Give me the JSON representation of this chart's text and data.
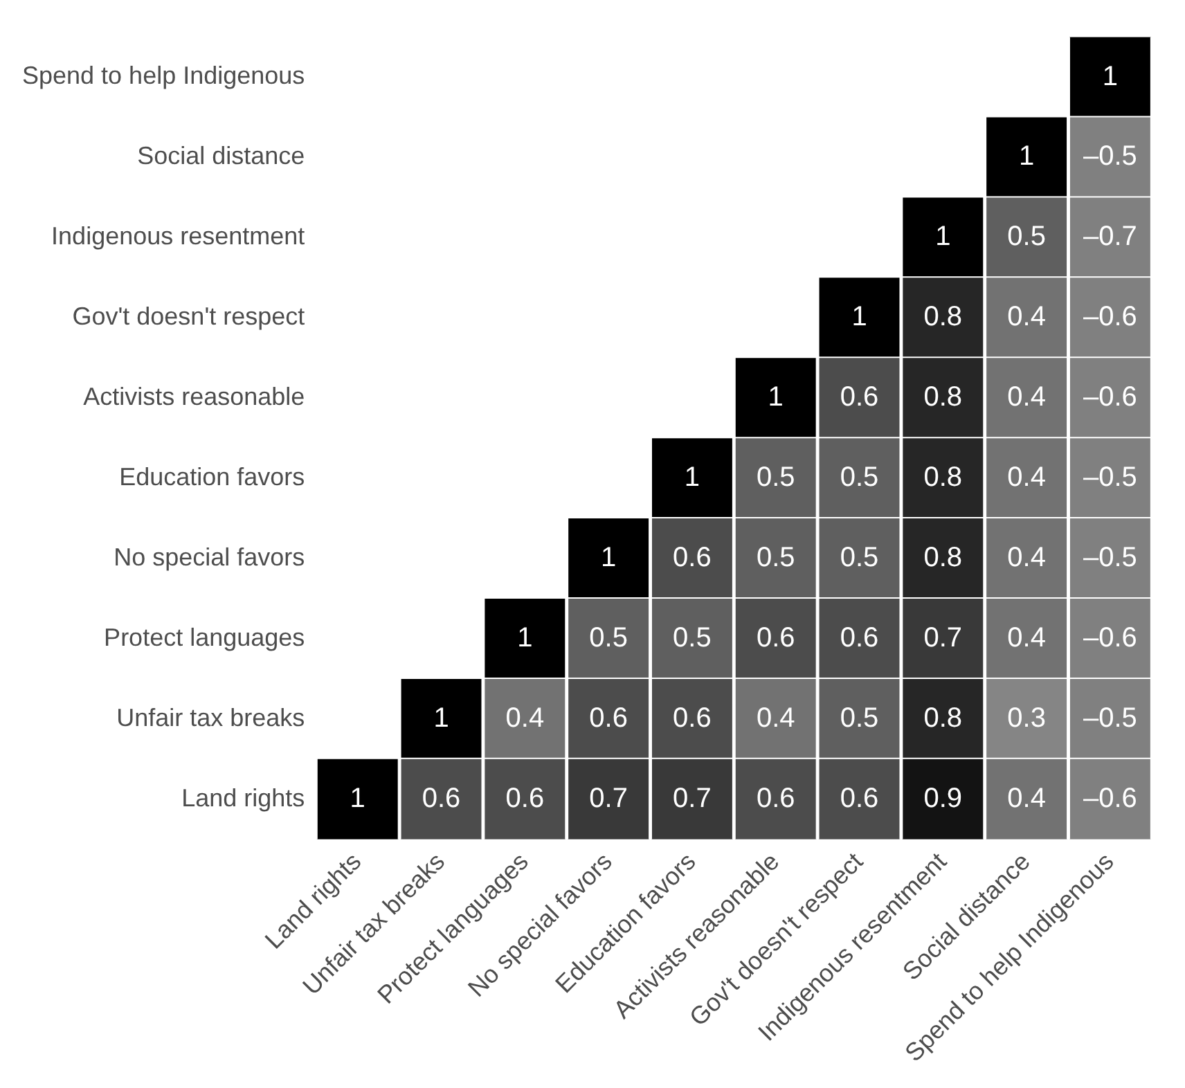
{
  "chart_data": {
    "type": "heatmap",
    "categories": [
      "Land rights",
      "Unfair tax breaks",
      "Protect languages",
      "No special favors",
      "Education favors",
      "Activists reasonable",
      "Gov't doesn't respect",
      "Indigenous resentment",
      "Social distance",
      "Spend to help Indigenous"
    ],
    "y_categories": [
      "Spend to help Indigenous",
      "Social distance",
      "Indigenous resentment",
      "Gov't doesn't respect",
      "Activists reasonable",
      "Education favors",
      "No special favors",
      "Protect languages",
      "Unfair tax breaks",
      "Land rights"
    ],
    "cells": [
      [
        null,
        null,
        null,
        null,
        null,
        null,
        null,
        null,
        null,
        1
      ],
      [
        null,
        null,
        null,
        null,
        null,
        null,
        null,
        null,
        1,
        -0.5
      ],
      [
        null,
        null,
        null,
        null,
        null,
        null,
        null,
        1,
        0.5,
        -0.7
      ],
      [
        null,
        null,
        null,
        null,
        null,
        null,
        1,
        0.8,
        0.4,
        -0.6
      ],
      [
        null,
        null,
        null,
        null,
        null,
        1,
        0.6,
        0.8,
        0.4,
        -0.6
      ],
      [
        null,
        null,
        null,
        null,
        1,
        0.5,
        0.5,
        0.8,
        0.4,
        -0.5
      ],
      [
        null,
        null,
        null,
        1,
        0.6,
        0.5,
        0.5,
        0.8,
        0.4,
        -0.5
      ],
      [
        null,
        null,
        1,
        0.5,
        0.5,
        0.6,
        0.6,
        0.7,
        0.4,
        -0.6
      ],
      [
        null,
        1,
        0.4,
        0.6,
        0.6,
        0.4,
        0.5,
        0.8,
        0.3,
        -0.5
      ],
      [
        1,
        0.6,
        0.6,
        0.7,
        0.7,
        0.6,
        0.6,
        0.9,
        0.4,
        -0.6
      ]
    ],
    "cell_labels": [
      [
        null,
        null,
        null,
        null,
        null,
        null,
        null,
        null,
        null,
        "1"
      ],
      [
        null,
        null,
        null,
        null,
        null,
        null,
        null,
        null,
        "1",
        "–0.5"
      ],
      [
        null,
        null,
        null,
        null,
        null,
        null,
        null,
        "1",
        "0.5",
        "–0.7"
      ],
      [
        null,
        null,
        null,
        null,
        null,
        null,
        "1",
        "0.8",
        "0.4",
        "–0.6"
      ],
      [
        null,
        null,
        null,
        null,
        null,
        "1",
        "0.6",
        "0.8",
        "0.4",
        "–0.6"
      ],
      [
        null,
        null,
        null,
        null,
        "1",
        "0.5",
        "0.5",
        "0.8",
        "0.4",
        "–0.5"
      ],
      [
        null,
        null,
        null,
        "1",
        "0.6",
        "0.5",
        "0.5",
        "0.8",
        "0.4",
        "–0.5"
      ],
      [
        null,
        null,
        "1",
        "0.5",
        "0.5",
        "0.6",
        "0.6",
        "0.7",
        "0.4",
        "–0.6"
      ],
      [
        null,
        "1",
        "0.4",
        "0.6",
        "0.6",
        "0.4",
        "0.5",
        "0.8",
        "0.3",
        "–0.5"
      ],
      [
        "1",
        "0.6",
        "0.6",
        "0.7",
        "0.7",
        "0.6",
        "0.6",
        "0.9",
        "0.4",
        "–0.6"
      ]
    ]
  }
}
